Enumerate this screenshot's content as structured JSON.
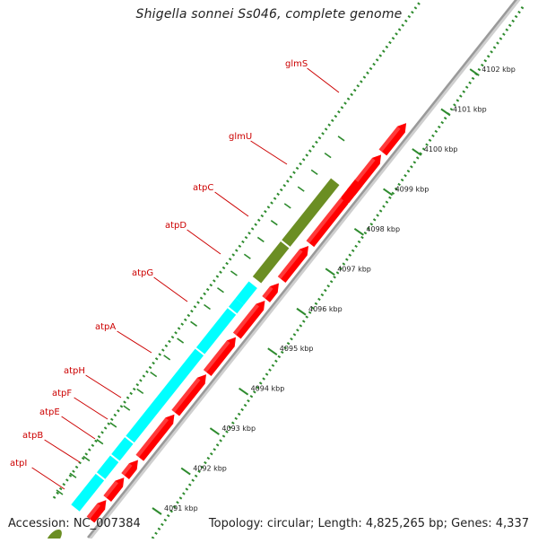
{
  "title": "Shigella sonnei Ss046, complete genome",
  "footer": {
    "accession": "Accession: NC_007384",
    "summary": "Topology: circular; Length: 4,825,265 bp; Genes: 4,337"
  },
  "colors": {
    "cds": "#ff0000",
    "rna_or_orf": "#6b8e23",
    "atp_operon": "#00ffff",
    "backbone": "#9a9a9a",
    "tick": "#2e8b2e",
    "label": "#cc0000"
  },
  "scale": {
    "unit": "kbp",
    "ticks": [
      {
        "value": 4091,
        "label": "4091 kbp"
      },
      {
        "value": 4092,
        "label": "4092 kbp"
      },
      {
        "value": 4093,
        "label": "4093 kbp"
      },
      {
        "value": 4094,
        "label": "4094 kbp"
      },
      {
        "value": 4095,
        "label": "4095 kbp"
      },
      {
        "value": 4096,
        "label": "4096 kbp"
      },
      {
        "value": 4097,
        "label": "4097 kbp"
      },
      {
        "value": 4098,
        "label": "4098 kbp"
      },
      {
        "value": 4099,
        "label": "4099 kbp"
      },
      {
        "value": 4100,
        "label": "4100 kbp"
      },
      {
        "value": 4101,
        "label": "4101 kbp"
      },
      {
        "value": 4102,
        "label": "4102 kbp"
      }
    ]
  },
  "genes": [
    {
      "name": "glmS",
      "category": "rna_or_orf"
    },
    {
      "name": "glmU",
      "category": "rna_or_orf"
    },
    {
      "name": "atpC",
      "category": "atp_operon"
    },
    {
      "name": "atpD",
      "category": "atp_operon"
    },
    {
      "name": "atpG",
      "category": "atp_operon"
    },
    {
      "name": "atpA",
      "category": "atp_operon"
    },
    {
      "name": "atpH",
      "category": "atp_operon"
    },
    {
      "name": "atpF",
      "category": "atp_operon"
    },
    {
      "name": "atpE",
      "category": "atp_operon"
    },
    {
      "name": "atpB",
      "category": "atp_operon"
    },
    {
      "name": "atpI",
      "category": "atp_operon"
    }
  ]
}
